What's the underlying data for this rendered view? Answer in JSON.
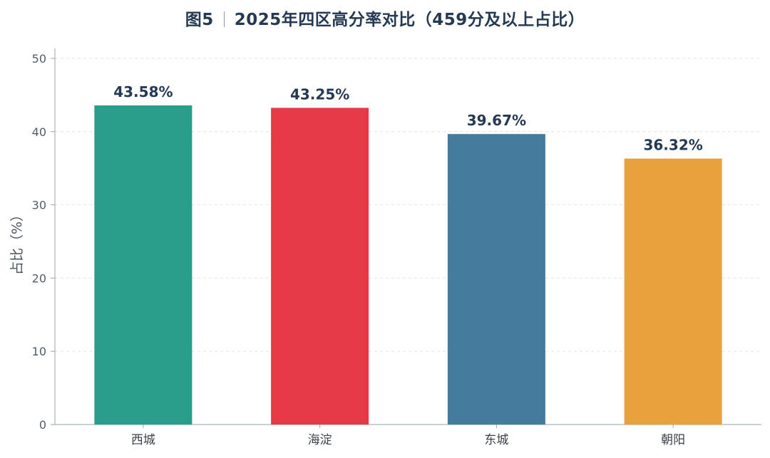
{
  "title": {
    "figure_label": "图5",
    "text": "2025年四区高分率对比（459分及以上占比）"
  },
  "chart_data": {
    "type": "bar",
    "categories": [
      "西城",
      "海淀",
      "东城",
      "朝阳"
    ],
    "values": [
      43.58,
      43.25,
      39.67,
      36.32
    ],
    "data_labels": [
      "43.58%",
      "43.25%",
      "39.67%",
      "36.32%"
    ],
    "colors": [
      "#2a9d8a",
      "#e63946",
      "#457b9d",
      "#e9a23b"
    ],
    "xlabel": "",
    "ylabel": "占比（%）",
    "ylim": [
      0,
      50
    ],
    "yticks": [
      0,
      10,
      20,
      30,
      40,
      50
    ],
    "grid": true
  }
}
